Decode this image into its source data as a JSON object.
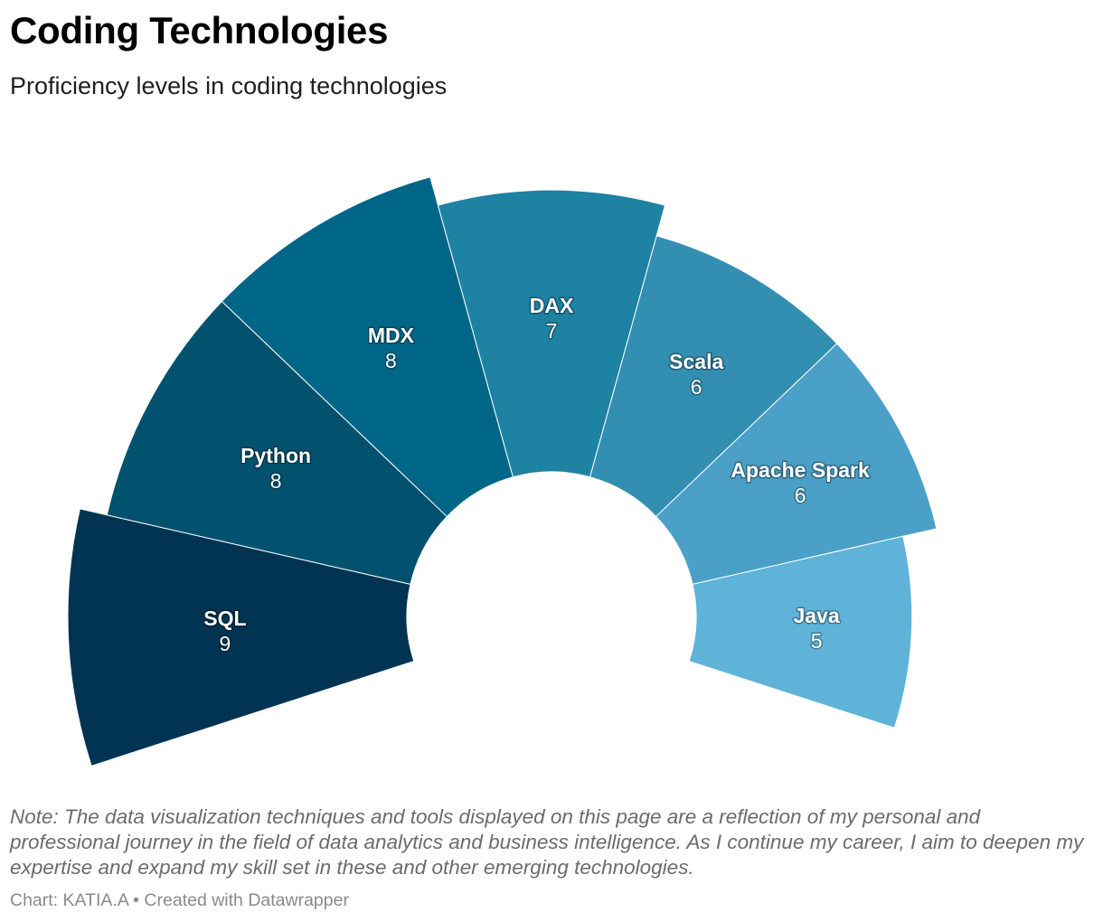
{
  "header": {
    "title": "Coding Technologies",
    "subtitle": "Proficiency levels in coding technologies"
  },
  "chart_data": {
    "type": "pie",
    "variant": "semi-donut",
    "categories": [
      "SQL",
      "Python",
      "MDX",
      "DAX",
      "Scala",
      "Apache Spark",
      "Java"
    ],
    "values": [
      9,
      8,
      8,
      7,
      6,
      6,
      5
    ],
    "value_labels": [
      "9",
      "8",
      "8",
      "7",
      "6",
      "6",
      "5"
    ],
    "colors": [
      "#003452",
      "#02526f",
      "#006687",
      "#1e82a2",
      "#338fb2",
      "#4aa0c7",
      "#5fb3d9"
    ],
    "radius_scale": "value",
    "legend": "none"
  },
  "footer": {
    "note": "Note: The data visualization techniques and tools displayed on this page are a reflection of my personal and professional journey in the field of data analytics and business intelligence. As I continue my career, I aim to deepen my expertise and expand my skill set in these and other emerging technologies.",
    "credit": "Chart: KATIA.A • Created with Datawrapper"
  }
}
